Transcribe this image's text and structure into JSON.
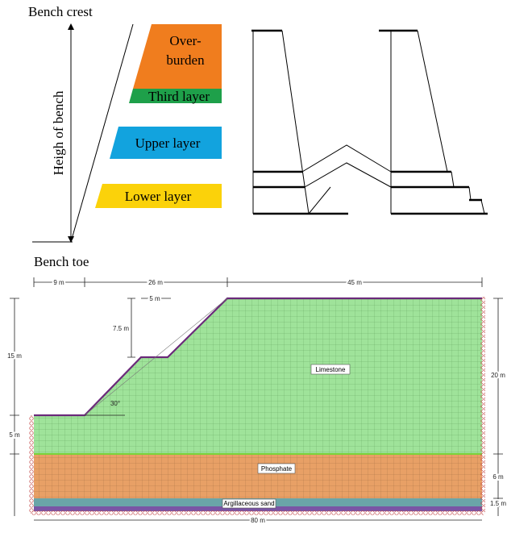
{
  "top": {
    "bench_crest": "Bench crest",
    "bench_toe": "Bench toe",
    "height_label": "Heigh of bench",
    "layers": {
      "overburden": [
        "Over-",
        "burden"
      ],
      "third": "Third layer",
      "upper": "Upper layer",
      "lower": "Lower layer"
    }
  },
  "bottom": {
    "dims": {
      "toe_width": "9 m",
      "slope_width": "26 m",
      "crest_width": "45 m",
      "berm_width": "5 m",
      "berm_height": "7.5 m",
      "slope_height": "15 m",
      "angle": "30°",
      "toe_height": "5 m",
      "right_height": "20 m",
      "phosphate_thickness": "6 m",
      "sand_thickness": "1.5 m",
      "total_width": "80 m"
    },
    "materials": {
      "limestone": "Limestone",
      "phosphate": "Phosphate",
      "sand": "Argillaceous sand"
    }
  }
}
